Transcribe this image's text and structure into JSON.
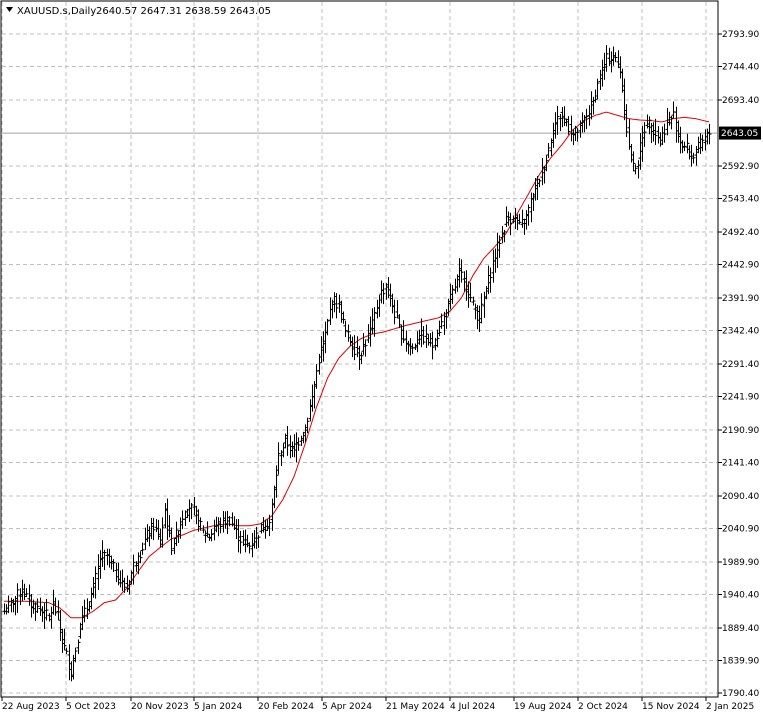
{
  "header": {
    "symbol": "XAUUSD.s,Daily",
    "ohlc": "2640.57 2647.31 2638.59 2643.05",
    "menu_icon": "triangle-down-icon"
  },
  "price_label": "2643.05",
  "colors": {
    "bars": "#000000",
    "ma": "#e00000",
    "grid": "#c0c0c0",
    "price_line": "#a0a0a0"
  },
  "chart_data": {
    "type": "ohlc",
    "title": "XAUUSD.s,Daily",
    "ylim": [
      1790.4,
      2810.0
    ],
    "y_ticks": [
      "2793.90",
      "2744.40",
      "2693.40",
      "2592.90",
      "2543.40",
      "2492.40",
      "2442.90",
      "2391.90",
      "2342.40",
      "2291.40",
      "2241.90",
      "2190.90",
      "2141.40",
      "2090.40",
      "2040.90",
      "1989.90",
      "1940.40",
      "1889.40",
      "1839.90",
      "1790.40"
    ],
    "x_ticks": [
      "22 Aug 2023",
      "5 Oct 2023",
      "20 Nov 2023",
      "5 Jan 2024",
      "20 Feb 2024",
      "5 Apr 2024",
      "21 May 2024",
      "4 Jul 2024",
      "19 Aug 2024",
      "2 Oct 2024",
      "15 Nov 2024",
      "2 Jan 2025"
    ],
    "grid": true,
    "last_price": 2643.05,
    "close_anchors": [
      [
        0,
        1915
      ],
      [
        4,
        1930
      ],
      [
        8,
        1948
      ],
      [
        12,
        1925
      ],
      [
        16,
        1918
      ],
      [
        20,
        1905
      ],
      [
        22,
        1925
      ],
      [
        24,
        1905
      ],
      [
        26,
        1870
      ],
      [
        28,
        1848
      ],
      [
        30,
        1822
      ],
      [
        32,
        1858
      ],
      [
        34,
        1895
      ],
      [
        37,
        1920
      ],
      [
        40,
        1950
      ],
      [
        43,
        1995
      ],
      [
        46,
        2000
      ],
      [
        49,
        1980
      ],
      [
        52,
        1960
      ],
      [
        55,
        1950
      ],
      [
        58,
        1985
      ],
      [
        61,
        2005
      ],
      [
        64,
        2030
      ],
      [
        67,
        2045
      ],
      [
        70,
        2020
      ],
      [
        72,
        2070
      ],
      [
        73,
        2045
      ],
      [
        75,
        2015
      ],
      [
        77,
        2030
      ],
      [
        80,
        2060
      ],
      [
        83,
        2075
      ],
      [
        86,
        2060
      ],
      [
        89,
        2035
      ],
      [
        92,
        2030
      ],
      [
        95,
        2045
      ],
      [
        98,
        2050
      ],
      [
        101,
        2055
      ],
      [
        104,
        2035
      ],
      [
        107,
        2020
      ],
      [
        110,
        2015
      ],
      [
        113,
        2030
      ],
      [
        116,
        2045
      ],
      [
        119,
        2050
      ],
      [
        123,
        2150
      ],
      [
        126,
        2175
      ],
      [
        129,
        2160
      ],
      [
        132,
        2175
      ],
      [
        135,
        2195
      ],
      [
        138,
        2240
      ],
      [
        141,
        2300
      ],
      [
        144,
        2335
      ],
      [
        147,
        2390
      ],
      [
        150,
        2380
      ],
      [
        153,
        2340
      ],
      [
        156,
        2320
      ],
      [
        159,
        2305
      ],
      [
        162,
        2325
      ],
      [
        165,
        2350
      ],
      [
        168,
        2395
      ],
      [
        171,
        2410
      ],
      [
        174,
        2380
      ],
      [
        177,
        2345
      ],
      [
        180,
        2325
      ],
      [
        183,
        2315
      ],
      [
        186,
        2335
      ],
      [
        189,
        2330
      ],
      [
        192,
        2320
      ],
      [
        195,
        2345
      ],
      [
        198,
        2370
      ],
      [
        201,
        2400
      ],
      [
        204,
        2430
      ],
      [
        207,
        2410
      ],
      [
        210,
        2380
      ],
      [
        213,
        2360
      ],
      [
        216,
        2405
      ],
      [
        219,
        2445
      ],
      [
        222,
        2480
      ],
      [
        225,
        2510
      ],
      [
        228,
        2515
      ],
      [
        231,
        2500
      ],
      [
        234,
        2515
      ],
      [
        237,
        2550
      ],
      [
        240,
        2575
      ],
      [
        243,
        2605
      ],
      [
        246,
        2650
      ],
      [
        249,
        2670
      ],
      [
        252,
        2660
      ],
      [
        255,
        2640
      ],
      [
        258,
        2650
      ],
      [
        261,
        2670
      ],
      [
        264,
        2690
      ],
      [
        267,
        2730
      ],
      [
        270,
        2755
      ],
      [
        273,
        2760
      ],
      [
        276,
        2740
      ],
      [
        278,
        2680
      ],
      [
        280,
        2620
      ],
      [
        282,
        2590
      ],
      [
        284,
        2600
      ],
      [
        286,
        2640
      ],
      [
        288,
        2660
      ],
      [
        291,
        2650
      ],
      [
        294,
        2630
      ],
      [
        297,
        2660
      ],
      [
        300,
        2670
      ],
      [
        302,
        2640
      ],
      [
        304,
        2625
      ],
      [
        306,
        2620
      ],
      [
        308,
        2605
      ],
      [
        310,
        2615
      ],
      [
        313,
        2630
      ],
      [
        316,
        2643
      ]
    ],
    "ma_anchors": [
      [
        0,
        1930
      ],
      [
        10,
        1930
      ],
      [
        20,
        1928
      ],
      [
        25,
        1920
      ],
      [
        30,
        1905
      ],
      [
        35,
        1905
      ],
      [
        40,
        1915
      ],
      [
        45,
        1928
      ],
      [
        50,
        1932
      ],
      [
        55,
        1950
      ],
      [
        60,
        1975
      ],
      [
        65,
        1998
      ],
      [
        70,
        2012
      ],
      [
        75,
        2025
      ],
      [
        80,
        2031
      ],
      [
        85,
        2038
      ],
      [
        90,
        2042
      ],
      [
        95,
        2046
      ],
      [
        100,
        2048
      ],
      [
        105,
        2045
      ],
      [
        110,
        2045
      ],
      [
        115,
        2048
      ],
      [
        120,
        2060
      ],
      [
        125,
        2085
      ],
      [
        130,
        2120
      ],
      [
        135,
        2170
      ],
      [
        140,
        2225
      ],
      [
        145,
        2270
      ],
      [
        150,
        2300
      ],
      [
        155,
        2318
      ],
      [
        160,
        2330
      ],
      [
        165,
        2337
      ],
      [
        170,
        2340
      ],
      [
        175,
        2345
      ],
      [
        180,
        2350
      ],
      [
        185,
        2354
      ],
      [
        190,
        2358
      ],
      [
        195,
        2362
      ],
      [
        200,
        2372
      ],
      [
        205,
        2392
      ],
      [
        210,
        2425
      ],
      [
        215,
        2452
      ],
      [
        220,
        2470
      ],
      [
        225,
        2490
      ],
      [
        230,
        2520
      ],
      [
        235,
        2550
      ],
      [
        240,
        2580
      ],
      [
        245,
        2605
      ],
      [
        250,
        2625
      ],
      [
        255,
        2648
      ],
      [
        260,
        2662
      ],
      [
        265,
        2670
      ],
      [
        270,
        2675
      ],
      [
        275,
        2670
      ],
      [
        280,
        2665
      ],
      [
        285,
        2663
      ],
      [
        290,
        2662
      ],
      [
        295,
        2660
      ],
      [
        300,
        2665
      ],
      [
        305,
        2667
      ],
      [
        310,
        2665
      ],
      [
        316,
        2660
      ]
    ]
  }
}
